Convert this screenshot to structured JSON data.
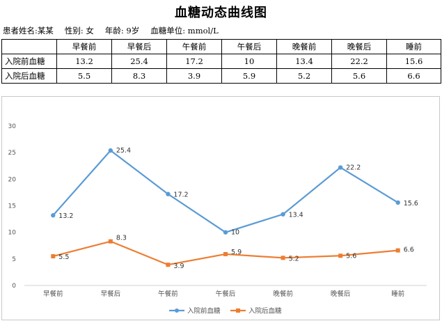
{
  "page": {
    "title": "血糖动态曲线图",
    "patient_info": {
      "name": "患者姓名:某某",
      "gender": "性别: 女",
      "age": "年龄: 9岁",
      "unit": "血糖单位: mmol/L"
    }
  },
  "table": {
    "headers": [
      "",
      "早餐前",
      "早餐后",
      "午餐前",
      "午餐后",
      "晚餐前",
      "晚餐后",
      "睡前"
    ],
    "rows": [
      {
        "label": "入院前血糖",
        "values": [
          "13.2",
          "25.4",
          "17.2",
          "10",
          "13.4",
          "22.2",
          "15.6"
        ]
      },
      {
        "label": "入院后血糖",
        "values": [
          "5.5",
          "8.3",
          "3.9",
          "5.9",
          "5.2",
          "5.6",
          "6.6"
        ]
      }
    ]
  },
  "chart_data": {
    "type": "line",
    "title": "",
    "xlabel": "",
    "ylabel": "",
    "categories": [
      "早餐前",
      "早餐后",
      "午餐前",
      "午餐后",
      "晚餐前",
      "晚餐后",
      "睡前"
    ],
    "ylim": [
      0,
      30
    ],
    "yticks": [
      "0",
      "5",
      "10",
      "15",
      "20",
      "25",
      "30"
    ],
    "grid": false,
    "legend_position": "bottom-center",
    "series": [
      {
        "name": "入院前血糖",
        "values": [
          13.2,
          25.4,
          17.2,
          10,
          13.4,
          22.2,
          15.6
        ],
        "labels": [
          "13.2",
          "25.4",
          "17.2",
          "10",
          "13.4",
          "22.2",
          "15.6"
        ],
        "color": "#5b9bd5",
        "marker": "circle"
      },
      {
        "name": "入院后血糖",
        "values": [
          5.5,
          8.3,
          3.9,
          5.9,
          5.2,
          5.6,
          6.6
        ],
        "labels": [
          "5.5",
          "8.3",
          "3.9",
          "5.9",
          "5.2",
          "5.6",
          "6.6"
        ],
        "color": "#ed7d31",
        "marker": "square"
      }
    ]
  }
}
